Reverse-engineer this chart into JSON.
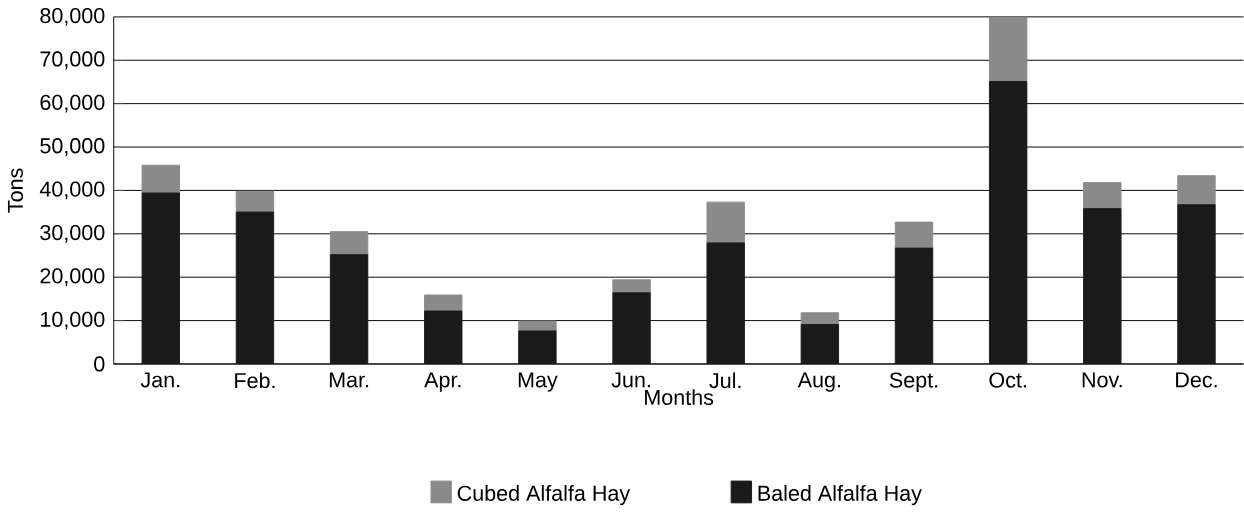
{
  "chart_data": {
    "type": "bar",
    "stacked": true,
    "xlabel": "Months",
    "ylabel": "Tons",
    "categories": [
      "Jan.",
      "Feb.",
      "Mar.",
      "Apr.",
      "May",
      "Jun.",
      "Jul.",
      "Aug.",
      "Sept.",
      "Oct.",
      "Nov.",
      "Dec."
    ],
    "series": [
      {
        "name": "Baled Alfalfa Hay",
        "color": "#1a1a1a",
        "values": [
          39400,
          35000,
          25200,
          12200,
          7600,
          16400,
          27900,
          9100,
          26700,
          65100,
          35800,
          36700
        ]
      },
      {
        "name": "Cubed Alfalfa Hay",
        "color": "#8a8a8a",
        "values": [
          6400,
          4800,
          5300,
          3700,
          2300,
          3000,
          9400,
          2700,
          6000,
          14900,
          6000,
          6700
        ]
      }
    ],
    "ylim": [
      0,
      80000
    ],
    "yticks": [
      {
        "value": 0,
        "label": "0"
      },
      {
        "value": 10000,
        "label": "10,000"
      },
      {
        "value": 20000,
        "label": "20,000"
      },
      {
        "value": 30000,
        "label": "30,000"
      },
      {
        "value": 40000,
        "label": "40,000"
      },
      {
        "value": 50000,
        "label": "50,000"
      },
      {
        "value": 60000,
        "label": "60,000"
      },
      {
        "value": 70000,
        "label": "70,000"
      },
      {
        "value": 80000,
        "label": "80,000"
      }
    ],
    "grid": "y",
    "legend": "bottom"
  }
}
